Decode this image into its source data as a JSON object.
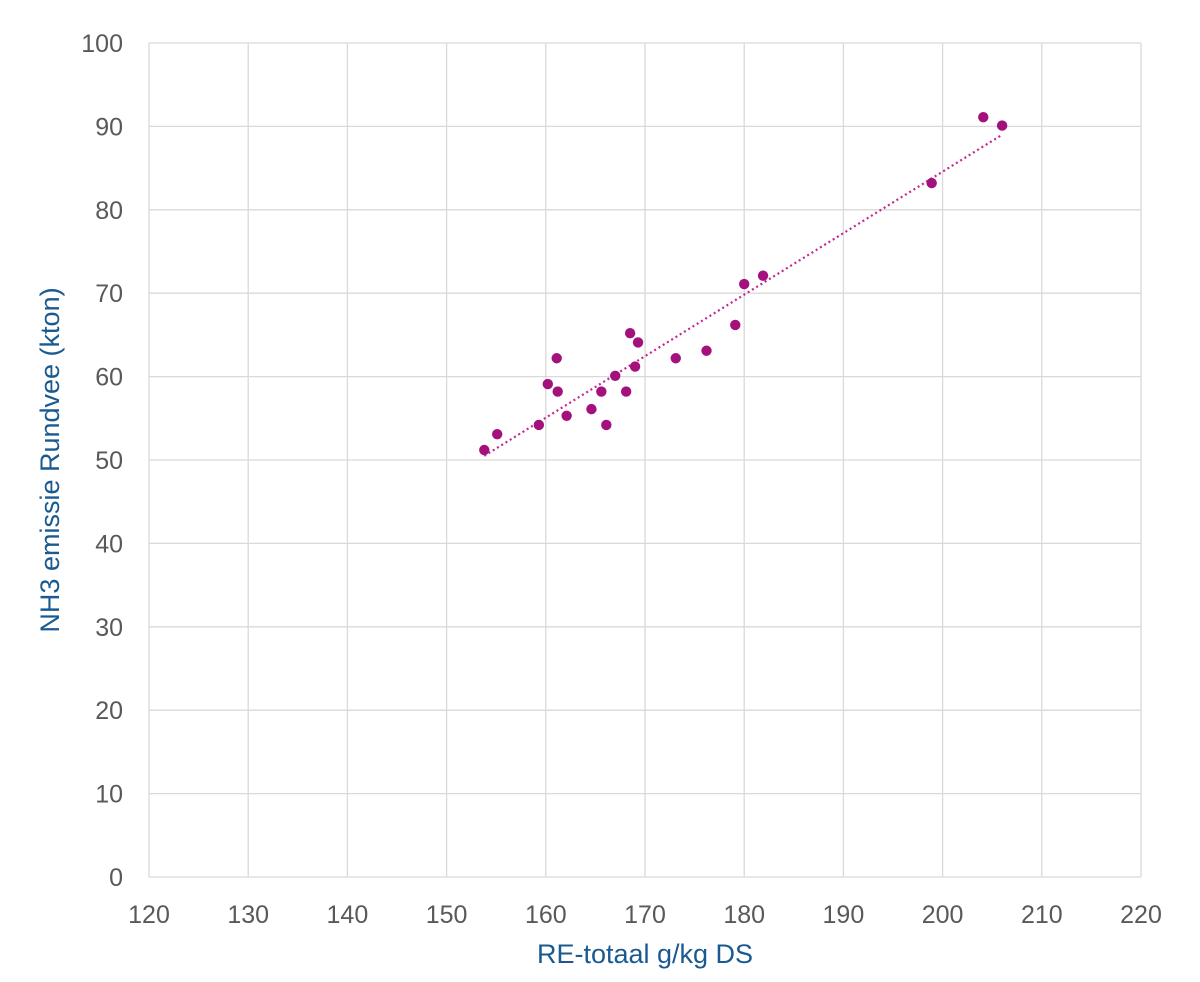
{
  "chart_data": {
    "type": "scatter",
    "title": "",
    "xlabel": "RE-totaal g/kg DS",
    "ylabel": "NH3 emissie Rundvee (kton)",
    "xlim": [
      120,
      220
    ],
    "ylim": [
      0,
      100
    ],
    "x_ticks": [
      "120",
      "130",
      "140",
      "150",
      "160",
      "170",
      "180",
      "190",
      "200",
      "210",
      "220"
    ],
    "y_ticks": [
      "0",
      "10",
      "20",
      "30",
      "40",
      "50",
      "60",
      "70",
      "80",
      "90",
      "100"
    ],
    "grid": true,
    "legend": "none",
    "series": [
      {
        "points": [
          {
            "x": 153.8,
            "y": 51.2
          },
          {
            "x": 155.1,
            "y": 53.1
          },
          {
            "x": 159.3,
            "y": 54.2
          },
          {
            "x": 160.2,
            "y": 59.1
          },
          {
            "x": 161.1,
            "y": 62.2
          },
          {
            "x": 161.2,
            "y": 58.2
          },
          {
            "x": 162.1,
            "y": 55.3
          },
          {
            "x": 164.6,
            "y": 56.1
          },
          {
            "x": 165.6,
            "y": 58.2
          },
          {
            "x": 166.1,
            "y": 54.2
          },
          {
            "x": 167.0,
            "y": 60.1
          },
          {
            "x": 168.1,
            "y": 58.2
          },
          {
            "x": 168.5,
            "y": 65.2
          },
          {
            "x": 169.0,
            "y": 61.2
          },
          {
            "x": 169.3,
            "y": 64.1
          },
          {
            "x": 173.1,
            "y": 62.2
          },
          {
            "x": 176.2,
            "y": 63.1
          },
          {
            "x": 179.1,
            "y": 66.2
          },
          {
            "x": 180.0,
            "y": 71.1
          },
          {
            "x": 181.9,
            "y": 72.1
          },
          {
            "x": 198.9,
            "y": 83.2
          },
          {
            "x": 204.1,
            "y": 91.1
          },
          {
            "x": 206.0,
            "y": 90.1
          }
        ]
      }
    ],
    "trendline": {
      "style": "dotted",
      "from": {
        "x": 153.8,
        "y": 50.5
      },
      "to": {
        "x": 206.0,
        "y": 89.0
      }
    },
    "colors": {
      "points": "#a4117d",
      "trendline": "#c0288f",
      "axis_title": "#1a5a91",
      "tick_label": "#595959",
      "grid": "#d9d9d9"
    }
  }
}
